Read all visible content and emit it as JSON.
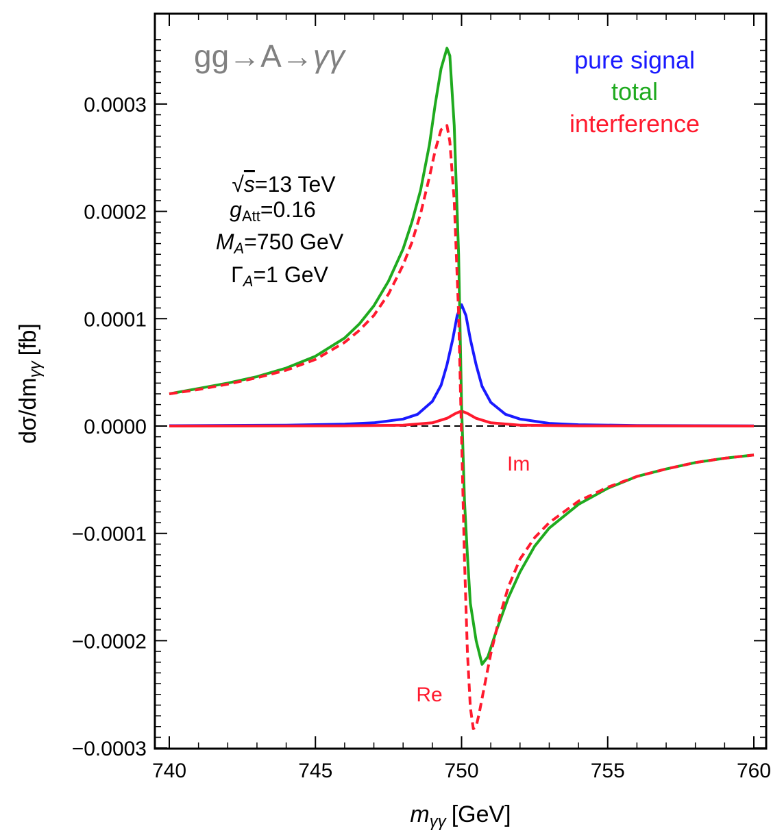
{
  "chart_data": {
    "type": "line",
    "process_prefix": "gg",
    "process_arrow1": "→",
    "process_mid": "A",
    "process_arrow2": "→",
    "process_final": "γγ",
    "xlabel_symbol": "m",
    "xlabel_sub": "γγ",
    "xlabel_unit": "[GeV]",
    "ylabel_main": "dσ/dm",
    "ylabel_sub": "γγ",
    "ylabel_unit": "[fb]",
    "xlim": [
      740,
      760
    ],
    "ylim": [
      -0.0003,
      0.00037
    ],
    "xticks": [
      {
        "value": 740,
        "label": "740"
      },
      {
        "value": 745,
        "label": "745"
      },
      {
        "value": 750,
        "label": "750"
      },
      {
        "value": 755,
        "label": "755"
      },
      {
        "value": 760,
        "label": "760"
      }
    ],
    "yticks": [
      {
        "value": -0.0003,
        "label": "−0.0003"
      },
      {
        "value": -0.0002,
        "label": "−0.0002"
      },
      {
        "value": -0.0001,
        "label": "−0.0001"
      },
      {
        "value": 0,
        "label": "0.0000"
      },
      {
        "value": 0.0001,
        "label": "0.0001"
      },
      {
        "value": 0.0002,
        "label": "0.0002"
      },
      {
        "value": 0.0003,
        "label": "0.0003"
      }
    ],
    "legend": [
      {
        "name": "pure signal",
        "color": "#1a1aff"
      },
      {
        "name": "total",
        "color": "#1faa1f"
      },
      {
        "name": "interference",
        "color": "#ff1a2e"
      }
    ],
    "info": {
      "sqrt_symbol": "√",
      "sqrt_arg": "s",
      "energy": "=13 TeV",
      "coupling_symbol": "g",
      "coupling_sub": "Att",
      "coupling_value": "=0.16",
      "mass_symbol": "M",
      "mass_sub": "A",
      "mass_value": "=750 GeV",
      "width_symbol": "Γ",
      "width_sub": "A",
      "width_value": "=1 GeV"
    },
    "annotations": [
      {
        "text": "Im",
        "x": 751.95,
        "y": -3.5e-05,
        "color": "#ff1a2e"
      },
      {
        "text": "Re",
        "x": 748.9,
        "y": -0.00025,
        "color": "#ff1a2e"
      }
    ],
    "series": [
      {
        "name": "total",
        "color": "#1faa1f",
        "style": "solid",
        "x": [
          740,
          741,
          742,
          743,
          744,
          745,
          746,
          746.5,
          747,
          747.5,
          748,
          748.3,
          748.6,
          748.9,
          749.1,
          749.3,
          749.5,
          749.6,
          749.75,
          749.9,
          750.0,
          750.1,
          750.2,
          750.3,
          750.5,
          750.7,
          750.9,
          751.2,
          751.6,
          752,
          752.5,
          753,
          754,
          755,
          756,
          757,
          758,
          759,
          760
        ],
        "y": [
          3e-05,
          3.5e-05,
          4e-05,
          4.6e-05,
          5.4e-05,
          6.5e-05,
          8.2e-05,
          9.5e-05,
          0.000112,
          0.000135,
          0.000165,
          0.00019,
          0.00022,
          0.000262,
          0.0003,
          0.000333,
          0.000352,
          0.000345,
          0.00028,
          0.00016,
          2e-05,
          -7e-05,
          -0.00012,
          -0.000165,
          -0.0002,
          -0.000222,
          -0.000215,
          -0.00019,
          -0.00016,
          -0.000136,
          -0.000112,
          -9.5e-05,
          -7.3e-05,
          -5.8e-05,
          -4.7e-05,
          -4e-05,
          -3.4e-05,
          -3e-05,
          -2.7e-05
        ]
      },
      {
        "name": "interference (Re)",
        "color": "#ff1a2e",
        "style": "dashed",
        "x": [
          740,
          741,
          742,
          743,
          744,
          745,
          746,
          746.5,
          747,
          747.5,
          748,
          748.3,
          748.6,
          748.9,
          749.1,
          749.3,
          749.5,
          749.6,
          749.75,
          749.9,
          750.0,
          750.1,
          750.2,
          750.3,
          750.4,
          750.5,
          750.6,
          750.8,
          751.0,
          751.3,
          751.6,
          752,
          752.5,
          753,
          754,
          755,
          756,
          757,
          758,
          759,
          760
        ],
        "y": [
          3e-05,
          3.4e-05,
          3.9e-05,
          4.5e-05,
          5.2e-05,
          6.2e-05,
          7.8e-05,
          8.9e-05,
          0.000103,
          0.000123,
          0.00015,
          0.000171,
          0.000198,
          0.000232,
          0.000257,
          0.000276,
          0.00028,
          0.000265,
          0.00021,
          0.000105,
          -1e-05,
          -0.000125,
          -0.00021,
          -0.000262,
          -0.000282,
          -0.00028,
          -0.000268,
          -0.00024,
          -0.000212,
          -0.000178,
          -0.00015,
          -0.000124,
          -0.000104,
          -9e-05,
          -7e-05,
          -5.7e-05,
          -4.7e-05,
          -4e-05,
          -3.4e-05,
          -3e-05,
          -2.7e-05
        ]
      },
      {
        "name": "pure signal",
        "color": "#1a1aff",
        "style": "solid",
        "x": [
          740,
          744,
          746,
          747,
          748,
          748.5,
          749,
          749.3,
          749.5,
          749.7,
          749.85,
          750,
          750.15,
          750.3,
          750.5,
          750.7,
          751,
          751.5,
          752,
          753,
          754,
          756,
          760
        ],
        "y": [
          3e-07,
          8e-07,
          1.8e-06,
          3e-06,
          6.5e-06,
          1.1e-05,
          2.3e-05,
          3.8e-05,
          5.7e-05,
          8.1e-05,
          0.000103,
          0.000113,
          0.000103,
          8.1e-05,
          5.7e-05,
          3.7e-05,
          2.2e-05,
          1.1e-05,
          6.5e-06,
          2.5e-06,
          1.2e-06,
          5e-07,
          2e-07
        ]
      },
      {
        "name": "interference (Im)",
        "color": "#ff1a2e",
        "style": "solid",
        "x": [
          740,
          746,
          748,
          749,
          749.5,
          749.8,
          750,
          750.2,
          750.5,
          751,
          752,
          754,
          760
        ],
        "y": [
          0,
          2e-07,
          8e-07,
          3e-06,
          7.2e-06,
          1.18e-05,
          1.4e-05,
          1.18e-05,
          7.2e-06,
          3e-06,
          8e-07,
          2e-07,
          0
        ]
      },
      {
        "name": "zero line",
        "color": "#000000",
        "style": "dashed",
        "x": [
          740,
          760
        ],
        "y": [
          0,
          0
        ]
      }
    ]
  }
}
